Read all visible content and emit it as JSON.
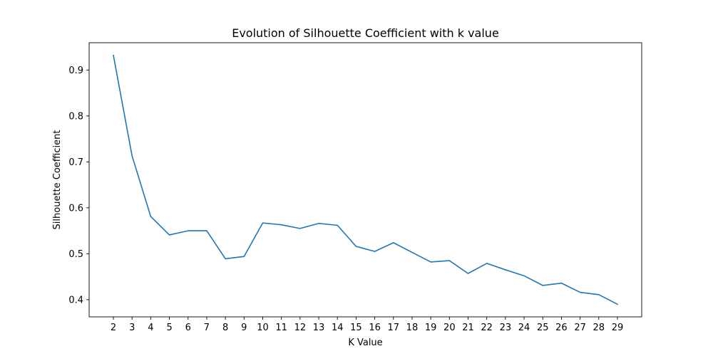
{
  "chart_data": {
    "type": "line",
    "title": "Evolution of Silhouette Coefficient with k value",
    "xlabel": "K Value",
    "ylabel": "Silhouette Coefficient",
    "x": [
      2,
      3,
      4,
      5,
      6,
      7,
      8,
      9,
      10,
      11,
      12,
      13,
      14,
      15,
      16,
      17,
      18,
      19,
      20,
      21,
      22,
      23,
      24,
      25,
      26,
      27,
      28,
      29
    ],
    "series": [
      {
        "color": "#1f77b4",
        "values": [
          0.932,
          0.713,
          0.581,
          0.541,
          0.55,
          0.55,
          0.489,
          0.494,
          0.567,
          0.563,
          0.555,
          0.566,
          0.562,
          0.516,
          0.505,
          0.524,
          0.503,
          0.482,
          0.485,
          0.457,
          0.479,
          0.465,
          0.452,
          0.431,
          0.436,
          0.416,
          0.411,
          0.39
        ]
      }
    ],
    "xlim": [
      0.7,
      30.3
    ],
    "ylim": [
      0.3626,
      0.9594
    ],
    "xticks": [
      "2",
      "3",
      "4",
      "5",
      "6",
      "7",
      "8",
      "9",
      "10",
      "11",
      "12",
      "13",
      "14",
      "15",
      "16",
      "17",
      "18",
      "19",
      "20",
      "21",
      "22",
      "23",
      "24",
      "25",
      "26",
      "27",
      "28",
      "29"
    ],
    "yticks": [
      "0.4",
      "0.5",
      "0.6",
      "0.7",
      "0.8",
      "0.9"
    ],
    "grid": false,
    "legend": "none"
  }
}
